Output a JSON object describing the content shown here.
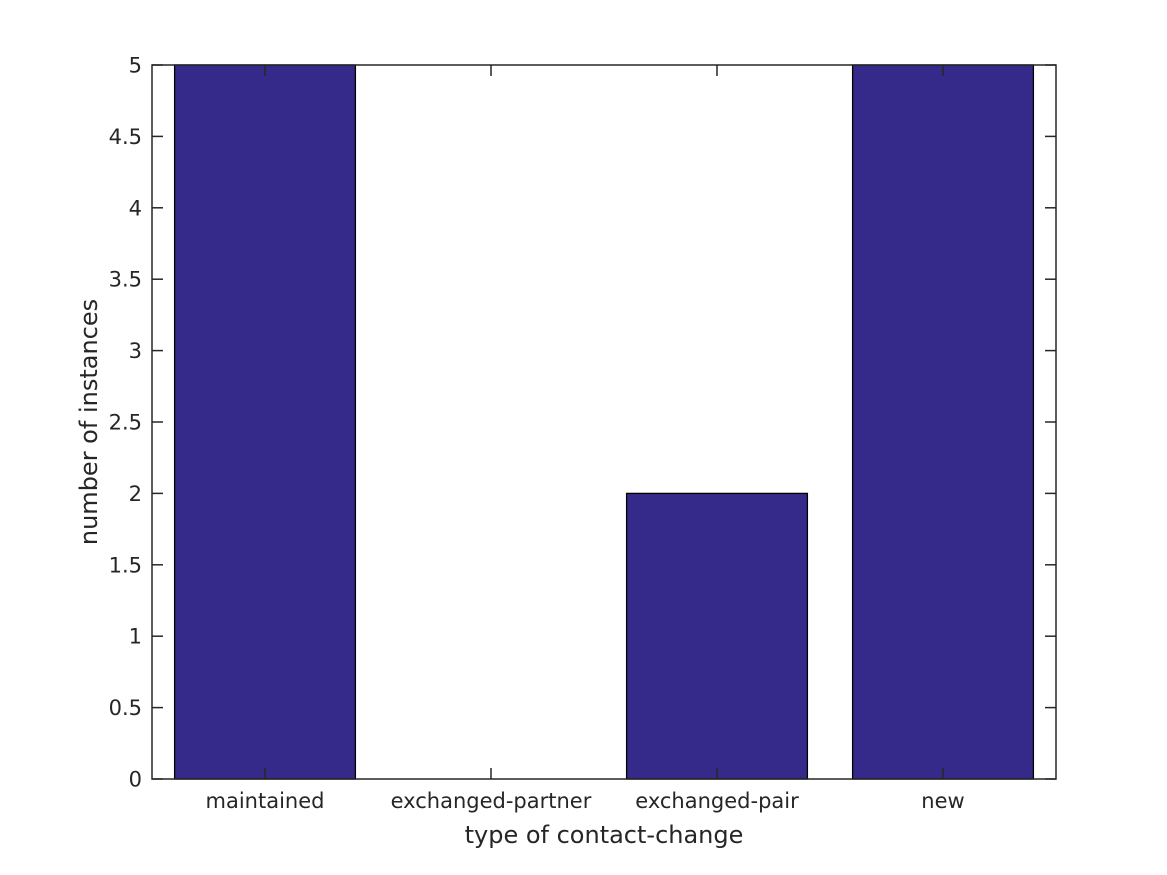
{
  "chart_data": {
    "type": "bar",
    "title": "",
    "categories": [
      "maintained",
      "exchanged-partner",
      "exchanged-pair",
      "new"
    ],
    "values": [
      5,
      0,
      2,
      5
    ],
    "xlabel": "type of contact-change",
    "ylabel": "number of instances",
    "ylim": [
      0,
      5
    ],
    "yticks": [
      {
        "value": 0,
        "label": "0"
      },
      {
        "value": 0.5,
        "label": "0.5"
      },
      {
        "value": 1,
        "label": "1"
      },
      {
        "value": 1.5,
        "label": "1.5"
      },
      {
        "value": 2,
        "label": "2"
      },
      {
        "value": 2.5,
        "label": "2.5"
      },
      {
        "value": 3,
        "label": "3"
      },
      {
        "value": 3.5,
        "label": "3.5"
      },
      {
        "value": 4,
        "label": "4"
      },
      {
        "value": 4.5,
        "label": "4.5"
      },
      {
        "value": 5,
        "label": "5"
      }
    ],
    "bar_rel_width": 0.8,
    "grid": false,
    "legend": false,
    "box": true,
    "tick_dir": "in",
    "colors": {
      "bar_fill": "#352a8a",
      "bar_edge": "#000000",
      "axis": "#262626",
      "text": "#262626",
      "background": "#ffffff"
    }
  }
}
